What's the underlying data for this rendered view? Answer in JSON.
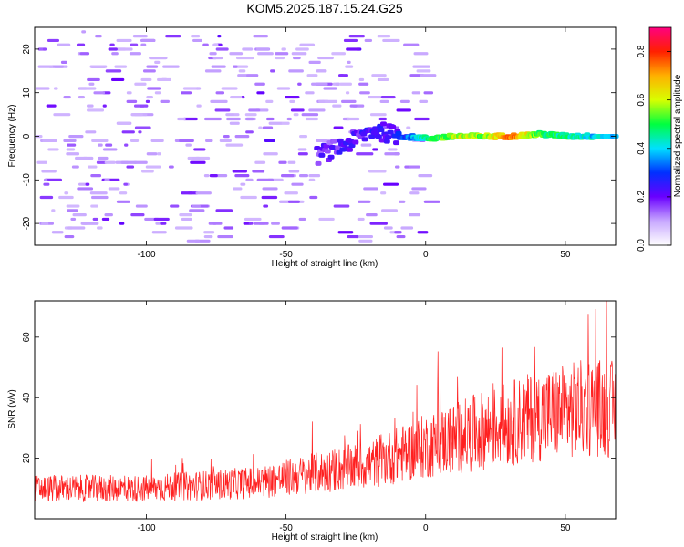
{
  "title": "KOM5.2025.187.15.24.G25",
  "chart_data": [
    {
      "type": "heatmap",
      "xlabel": "Height of straight line (km)",
      "ylabel": "Frequency (Hz)",
      "xlim": [
        -140,
        68
      ],
      "ylim": [
        -25,
        25
      ],
      "xticks": [
        -100,
        -50,
        0,
        50
      ],
      "yticks": [
        -20,
        -10,
        0,
        10,
        20
      ],
      "colorbar": {
        "label": "Normalized spectral amplitude",
        "range": [
          0.0,
          0.9
        ],
        "ticks": [
          "0.0",
          "0.2",
          "0.4",
          "0.6",
          "0.8"
        ],
        "colors": [
          "#ffffff",
          "#c8a8ff",
          "#6a00ff",
          "#0030ff",
          "#00e0ff",
          "#00ff40",
          "#d8ff00",
          "#ffb000",
          "#ff2000",
          "#ff0080"
        ]
      },
      "ridge": [
        {
          "x": -40,
          "y": -4.5,
          "amp": 0.18
        },
        {
          "x": -30,
          "y": -2.0,
          "amp": 0.2
        },
        {
          "x": -20,
          "y": 1.5,
          "amp": 0.22
        },
        {
          "x": -10,
          "y": 0.0,
          "amp": 0.28
        },
        {
          "x": 0,
          "y": -0.5,
          "amp": 0.45
        },
        {
          "x": 10,
          "y": 0.0,
          "amp": 0.6
        },
        {
          "x": 20,
          "y": 0.0,
          "amp": 0.55
        },
        {
          "x": 30,
          "y": 0.0,
          "amp": 0.75
        },
        {
          "x": 40,
          "y": 0.5,
          "amp": 0.5
        },
        {
          "x": 50,
          "y": 0.0,
          "amp": 0.45
        },
        {
          "x": 60,
          "y": 0.0,
          "amp": 0.4
        }
      ]
    },
    {
      "type": "line",
      "xlabel": "Height of straight line (km)",
      "ylabel": "SNR (v/v)",
      "xlim": [
        -140,
        68
      ],
      "ylim": [
        0,
        72
      ],
      "xticks": [
        -100,
        -50,
        0,
        50
      ],
      "yticks": [
        20,
        40,
        60
      ],
      "series": [
        {
          "color": "#ff2020",
          "x": [
            -140,
            -120,
            -100,
            -80,
            -60,
            -40,
            -20,
            0,
            20,
            40,
            60,
            68
          ],
          "y": [
            10,
            10,
            10,
            11,
            12,
            15,
            18,
            24,
            29,
            34,
            37,
            36
          ]
        }
      ]
    }
  ]
}
